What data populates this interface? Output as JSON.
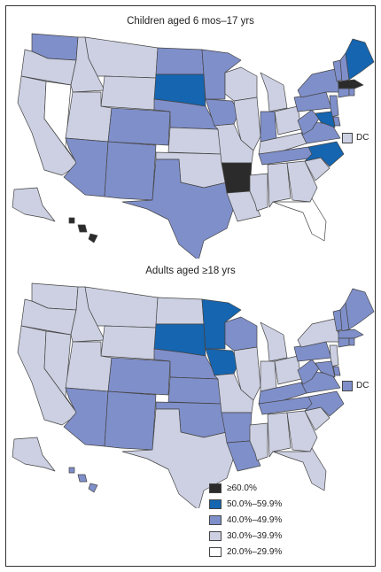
{
  "colors": {
    "c60": "#2b2b2b",
    "c50": "#1565b0",
    "c40": "#7f8fca",
    "c30": "#ccd0e2",
    "c20": "#ffffff"
  },
  "maps": [
    {
      "title": "Children aged 6 mos–17 yrs",
      "dc_label": "DC",
      "dc_class": "c30",
      "states": {
        "WA": "c40",
        "OR": "c30",
        "CA": "c30",
        "NV": "c20",
        "ID": "c30",
        "MT": "c30",
        "WY": "c30",
        "UT": "c30",
        "CO": "c40",
        "AZ": "c40",
        "NM": "c40",
        "ND": "c40",
        "SD": "c50",
        "NE": "c40",
        "KS": "c30",
        "OK": "c30",
        "TX": "c40",
        "MN": "c40",
        "IA": "c40",
        "MO": "c30",
        "AR": "c60",
        "LA": "c30",
        "WI": "c30",
        "IL": "c30",
        "MS": "c30",
        "MI": "c30",
        "IN": "c40",
        "OH": "c30",
        "KY": "c30",
        "TN": "c40",
        "AL": "c30",
        "GA": "c30",
        "FL": "c20",
        "SC": "c30",
        "NC": "c50",
        "VA": "c40",
        "WV": "c40",
        "PA": "c40",
        "NY": "c40",
        "VT": "c40",
        "NH": "c40",
        "ME": "c50",
        "MA": "c60",
        "CT": "c40",
        "RI": "c40",
        "NJ": "c40",
        "DE": "c40",
        "MD": "c50",
        "AK": "c30",
        "HI": "c60"
      }
    },
    {
      "title": "Adults aged ≥18 yrs",
      "dc_label": "DC",
      "dc_class": "c40",
      "states": {
        "WA": "c30",
        "OR": "c30",
        "CA": "c30",
        "NV": "c30",
        "ID": "c30",
        "MT": "c30",
        "WY": "c30",
        "UT": "c30",
        "CO": "c40",
        "AZ": "c40",
        "NM": "c40",
        "ND": "c30",
        "SD": "c50",
        "NE": "c40",
        "KS": "c40",
        "OK": "c40",
        "TX": "c30",
        "MN": "c50",
        "IA": "c50",
        "MO": "c30",
        "AR": "c40",
        "LA": "c40",
        "WI": "c40",
        "IL": "c30",
        "MS": "c30",
        "MI": "c30",
        "IN": "c30",
        "OH": "c30",
        "KY": "c40",
        "TN": "c40",
        "AL": "c30",
        "GA": "c30",
        "FL": "c30",
        "SC": "c30",
        "NC": "c40",
        "VA": "c40",
        "WV": "c40",
        "PA": "c40",
        "NY": "c30",
        "VT": "c40",
        "NH": "c40",
        "ME": "c40",
        "MA": "c40",
        "CT": "c40",
        "RI": "c40",
        "NJ": "c30",
        "DE": "c40",
        "MD": "c40",
        "AK": "c30",
        "HI": "c40"
      }
    }
  ],
  "legend": [
    {
      "class": "c60",
      "label": "≥60.0%"
    },
    {
      "class": "c50",
      "label": "50.0%–59.9%"
    },
    {
      "class": "c40",
      "label": "40.0%–49.9%"
    },
    {
      "class": "c30",
      "label": "30.0%–39.9%"
    },
    {
      "class": "c20",
      "label": "20.0%–29.9%"
    }
  ]
}
